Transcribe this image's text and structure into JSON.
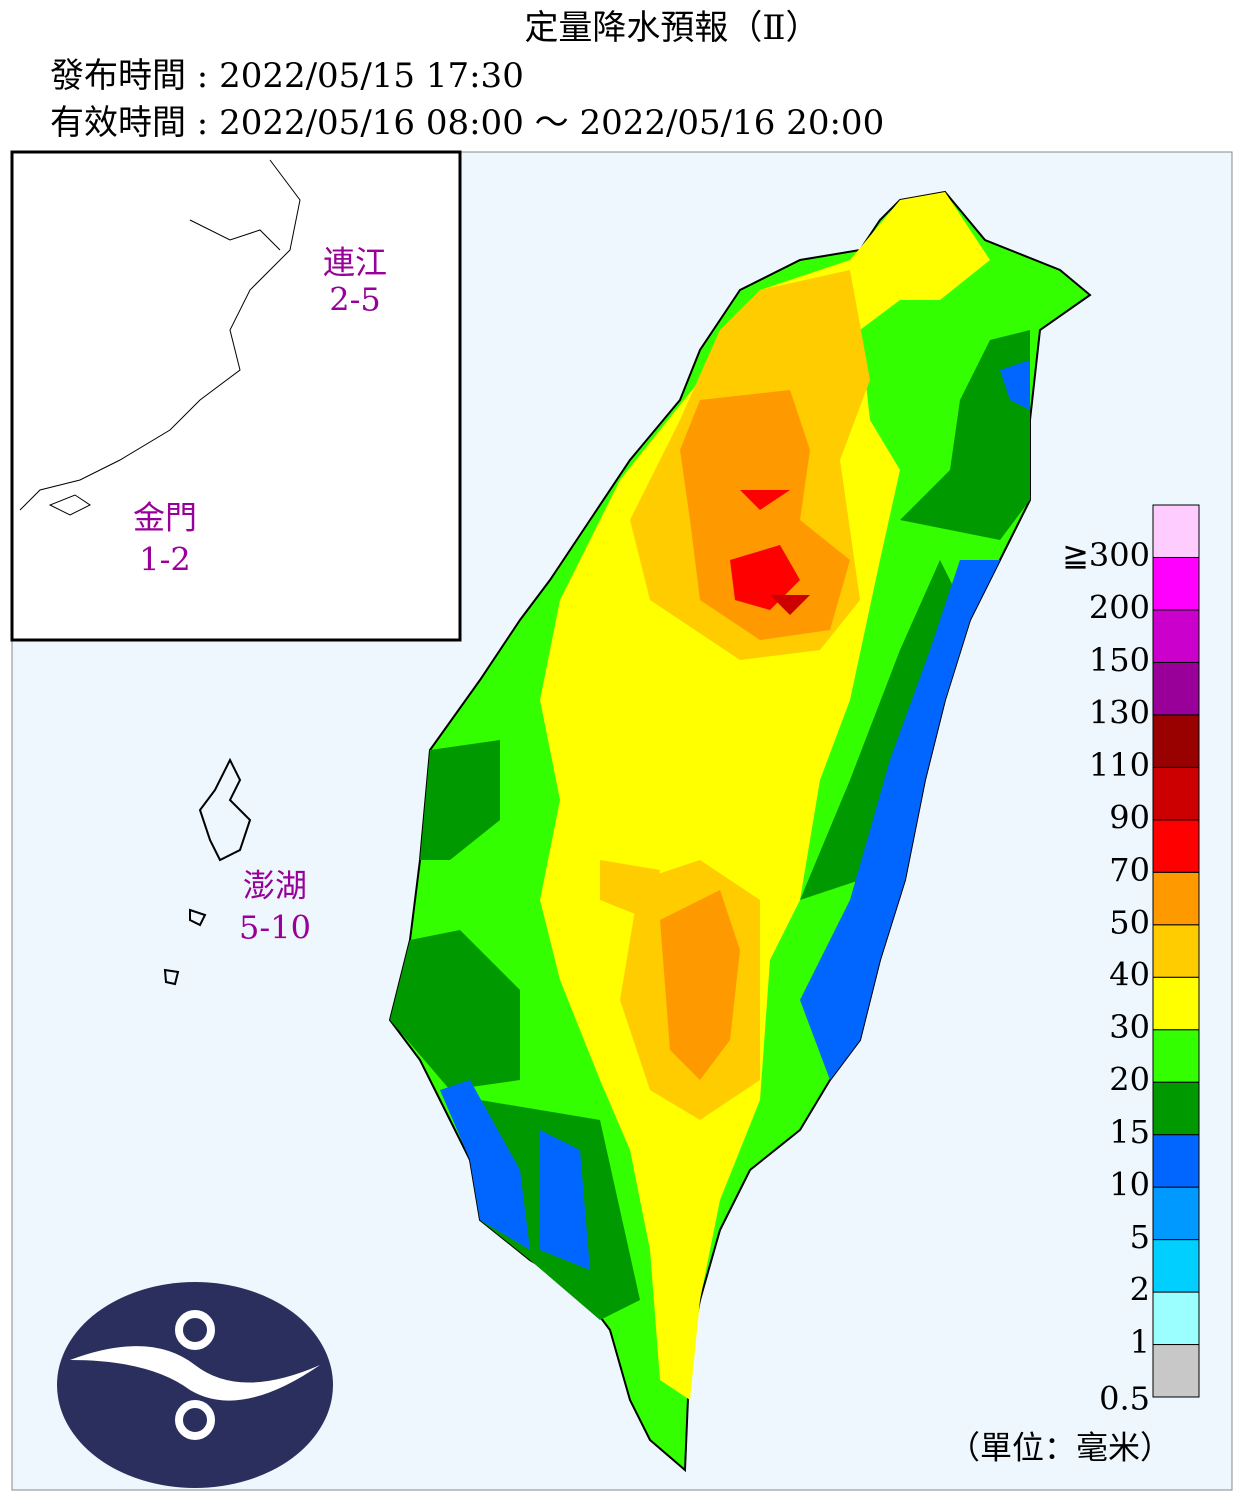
{
  "header": {
    "title": "定量降水預報（Ⅱ）",
    "issued": "發布時間 : 2022/05/15 17:30",
    "valid": "有效時間 : 2022/05/16 08:00 ～ 2022/05/16 20:00"
  },
  "islands": [
    {
      "name": "連江",
      "range": "2-5"
    },
    {
      "name": "金門",
      "range": "1-2"
    },
    {
      "name": "澎湖",
      "range": "5-10"
    }
  ],
  "legend": {
    "colors": [
      "#c8c8c8",
      "#9bffff",
      "#00cfff",
      "#0099ff",
      "#0066ff",
      "#009900",
      "#33ff00",
      "#ffff00",
      "#ffcc00",
      "#ff9900",
      "#ff0000",
      "#cc0000",
      "#990000",
      "#990099",
      "#cc00cc",
      "#ff00ff",
      "#ffccff"
    ],
    "labels": [
      "0.5",
      "1",
      "2",
      "5",
      "10",
      "15",
      "20",
      "30",
      "40",
      "50",
      "70",
      "90",
      "110",
      "130",
      "150",
      "200",
      "≧300"
    ],
    "unit": "（單位：毫米）"
  }
}
